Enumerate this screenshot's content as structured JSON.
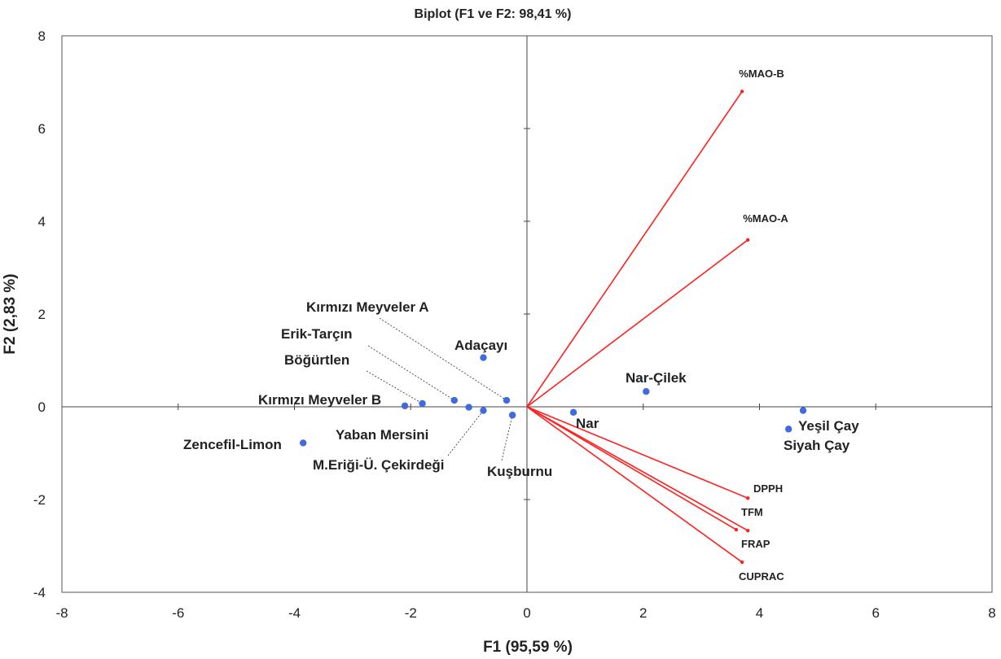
{
  "chart_data": {
    "type": "scatter",
    "title": "Biplot (F1 ve F2: 98,41 %)",
    "xlabel": "F1 (95,59 %)",
    "ylabel": "F2 (2,83 %)",
    "xlim": [
      -8,
      8
    ],
    "ylim": [
      -4,
      8
    ],
    "x_ticks": [
      "-8",
      "-6",
      "-4",
      "-2",
      "0",
      "2",
      "4",
      "6",
      "8"
    ],
    "y_ticks": [
      "-4",
      "-2",
      "0",
      "2",
      "4",
      "6",
      "8"
    ],
    "grid": false,
    "colors": {
      "observations": "#4169E1",
      "variables": "#FF2020",
      "axis": "#444444",
      "leader": "#444444"
    },
    "observations": [
      {
        "label": "Zencefil-Limon",
        "x": -3.85,
        "y": -0.78
      },
      {
        "label": "Kırmızı Meyveler B",
        "x": -2.1,
        "y": 0.02
      },
      {
        "label": "Böğürtlen",
        "x": -1.8,
        "y": 0.07
      },
      {
        "label": "Erik-Tarçın",
        "x": -1.25,
        "y": 0.14
      },
      {
        "label": "Yaban Mersini",
        "x": -1.0,
        "y": -0.01
      },
      {
        "label": "M.Eriği-Ü. Çekirdeği",
        "x": -0.75,
        "y": -0.08
      },
      {
        "label": "Kırmızı Meyveler A",
        "x": -0.35,
        "y": 0.14
      },
      {
        "label": "Kuşburnu",
        "x": -0.25,
        "y": -0.18
      },
      {
        "label": "Adaçayı",
        "x": -0.75,
        "y": 1.06
      },
      {
        "label": "Nar",
        "x": 0.8,
        "y": -0.12
      },
      {
        "label": "Nar-Çilek",
        "x": 2.05,
        "y": 0.33
      },
      {
        "label": "Siyah Çay",
        "x": 4.5,
        "y": -0.48
      },
      {
        "label": "Yeşil Çay",
        "x": 4.75,
        "y": -0.08
      }
    ],
    "variables": [
      {
        "label": "%MAO-B",
        "x": 3.7,
        "y": 6.8
      },
      {
        "label": "%MAO-A",
        "x": 3.8,
        "y": 3.6
      },
      {
        "label": "DPPH",
        "x": 3.8,
        "y": -1.97
      },
      {
        "label": "TFM",
        "x": 3.8,
        "y": -2.67
      },
      {
        "label": "FRAP",
        "x": 3.6,
        "y": -2.65
      },
      {
        "label": "CUPRAC",
        "x": 3.7,
        "y": -3.35
      }
    ]
  }
}
